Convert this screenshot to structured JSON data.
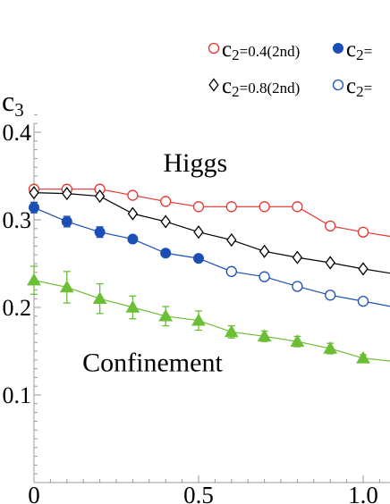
{
  "chart_data": {
    "type": "line",
    "title": "",
    "xlabel": "",
    "ylabel": "c",
    "ylabel_subscript": "3",
    "xlim": [
      0,
      1.08
    ],
    "ylim": [
      0,
      0.42
    ],
    "x_ticks": [
      {
        "value": 0,
        "label": "0"
      },
      {
        "value": 0.5,
        "label": "0.5"
      },
      {
        "value": 1.0,
        "label": "1.0"
      }
    ],
    "y_ticks": [
      {
        "value": 0.1,
        "label": "0.1"
      },
      {
        "value": 0.2,
        "label": "0.2"
      },
      {
        "value": 0.3,
        "label": "0.3"
      },
      {
        "value": 0.4,
        "label": "0.4"
      }
    ],
    "annotations": [
      {
        "text": "Higgs",
        "x": 0.49,
        "y": 0.355
      },
      {
        "text": "Confinement",
        "x": 0.36,
        "y": 0.127
      }
    ],
    "legend_position": "top-right",
    "series": [
      {
        "name": "c2=0.4(2nd)",
        "color": "#e8322d",
        "marker": "open-circle",
        "x": [
          0,
          0.1,
          0.2,
          0.3,
          0.4,
          0.5,
          0.6,
          0.7,
          0.8,
          0.9,
          1.0,
          1.1
        ],
        "values": [
          0.335,
          0.335,
          0.335,
          0.328,
          0.321,
          0.315,
          0.315,
          0.315,
          0.315,
          0.293,
          0.286,
          0.28
        ]
      },
      {
        "name": "c2=0.8(2nd)",
        "color": "#000000",
        "marker": "open-diamond",
        "x": [
          0,
          0.1,
          0.2,
          0.3,
          0.4,
          0.5,
          0.6,
          0.7,
          0.8,
          0.9,
          1.0,
          1.1
        ],
        "values": [
          0.331,
          0.33,
          0.327,
          0.307,
          0.298,
          0.286,
          0.277,
          0.264,
          0.257,
          0.251,
          0.244,
          0.238
        ]
      },
      {
        "name": "c2=",
        "color": "#1c4fb5",
        "marker": "filled-circle",
        "x": [
          0,
          0.1,
          0.2,
          0.3,
          0.4,
          0.5,
          0.6
        ],
        "values": [
          0.314,
          0.298,
          0.286,
          0.278,
          0.262,
          0.256,
          0.241
        ],
        "errors": [
          0.006,
          0.006,
          0.006,
          0.004,
          0.003,
          0.003,
          0.003
        ]
      },
      {
        "name": "c2=",
        "color": "#1c4fb5",
        "marker": "open-circle",
        "x": [
          0.6,
          0.7,
          0.8,
          0.9,
          1.0,
          1.1
        ],
        "values": [
          0.241,
          0.235,
          0.224,
          0.214,
          0.207,
          0.2
        ]
      },
      {
        "name": "",
        "color": "#6cbf35",
        "marker": "filled-triangle",
        "x": [
          0,
          0.1,
          0.2,
          0.3,
          0.4,
          0.5,
          0.6,
          0.7,
          0.8,
          0.9,
          1.0,
          1.1
        ],
        "values": [
          0.231,
          0.223,
          0.21,
          0.2,
          0.19,
          0.185,
          0.172,
          0.167,
          0.161,
          0.153,
          0.142,
          0.138
        ],
        "errors": [
          0.016,
          0.018,
          0.017,
          0.013,
          0.011,
          0.011,
          0.007,
          0.006,
          0.006,
          0.006,
          0.004,
          0
        ]
      }
    ],
    "legend": [
      {
        "prefix": "c",
        "sub": "2",
        "value": "=0.4(2nd)",
        "marker": "open-circle",
        "color": "#e8322d"
      },
      {
        "prefix": "c",
        "sub": "2",
        "value": "=",
        "marker": "filled-circle",
        "color": "#1c4fb5"
      },
      {
        "prefix": "c",
        "sub": "2",
        "value": "=0.8(2nd)",
        "marker": "open-diamond",
        "color": "#000000"
      },
      {
        "prefix": "c",
        "sub": "2",
        "value": "=",
        "marker": "open-circle",
        "color": "#1c4fb5"
      }
    ]
  }
}
